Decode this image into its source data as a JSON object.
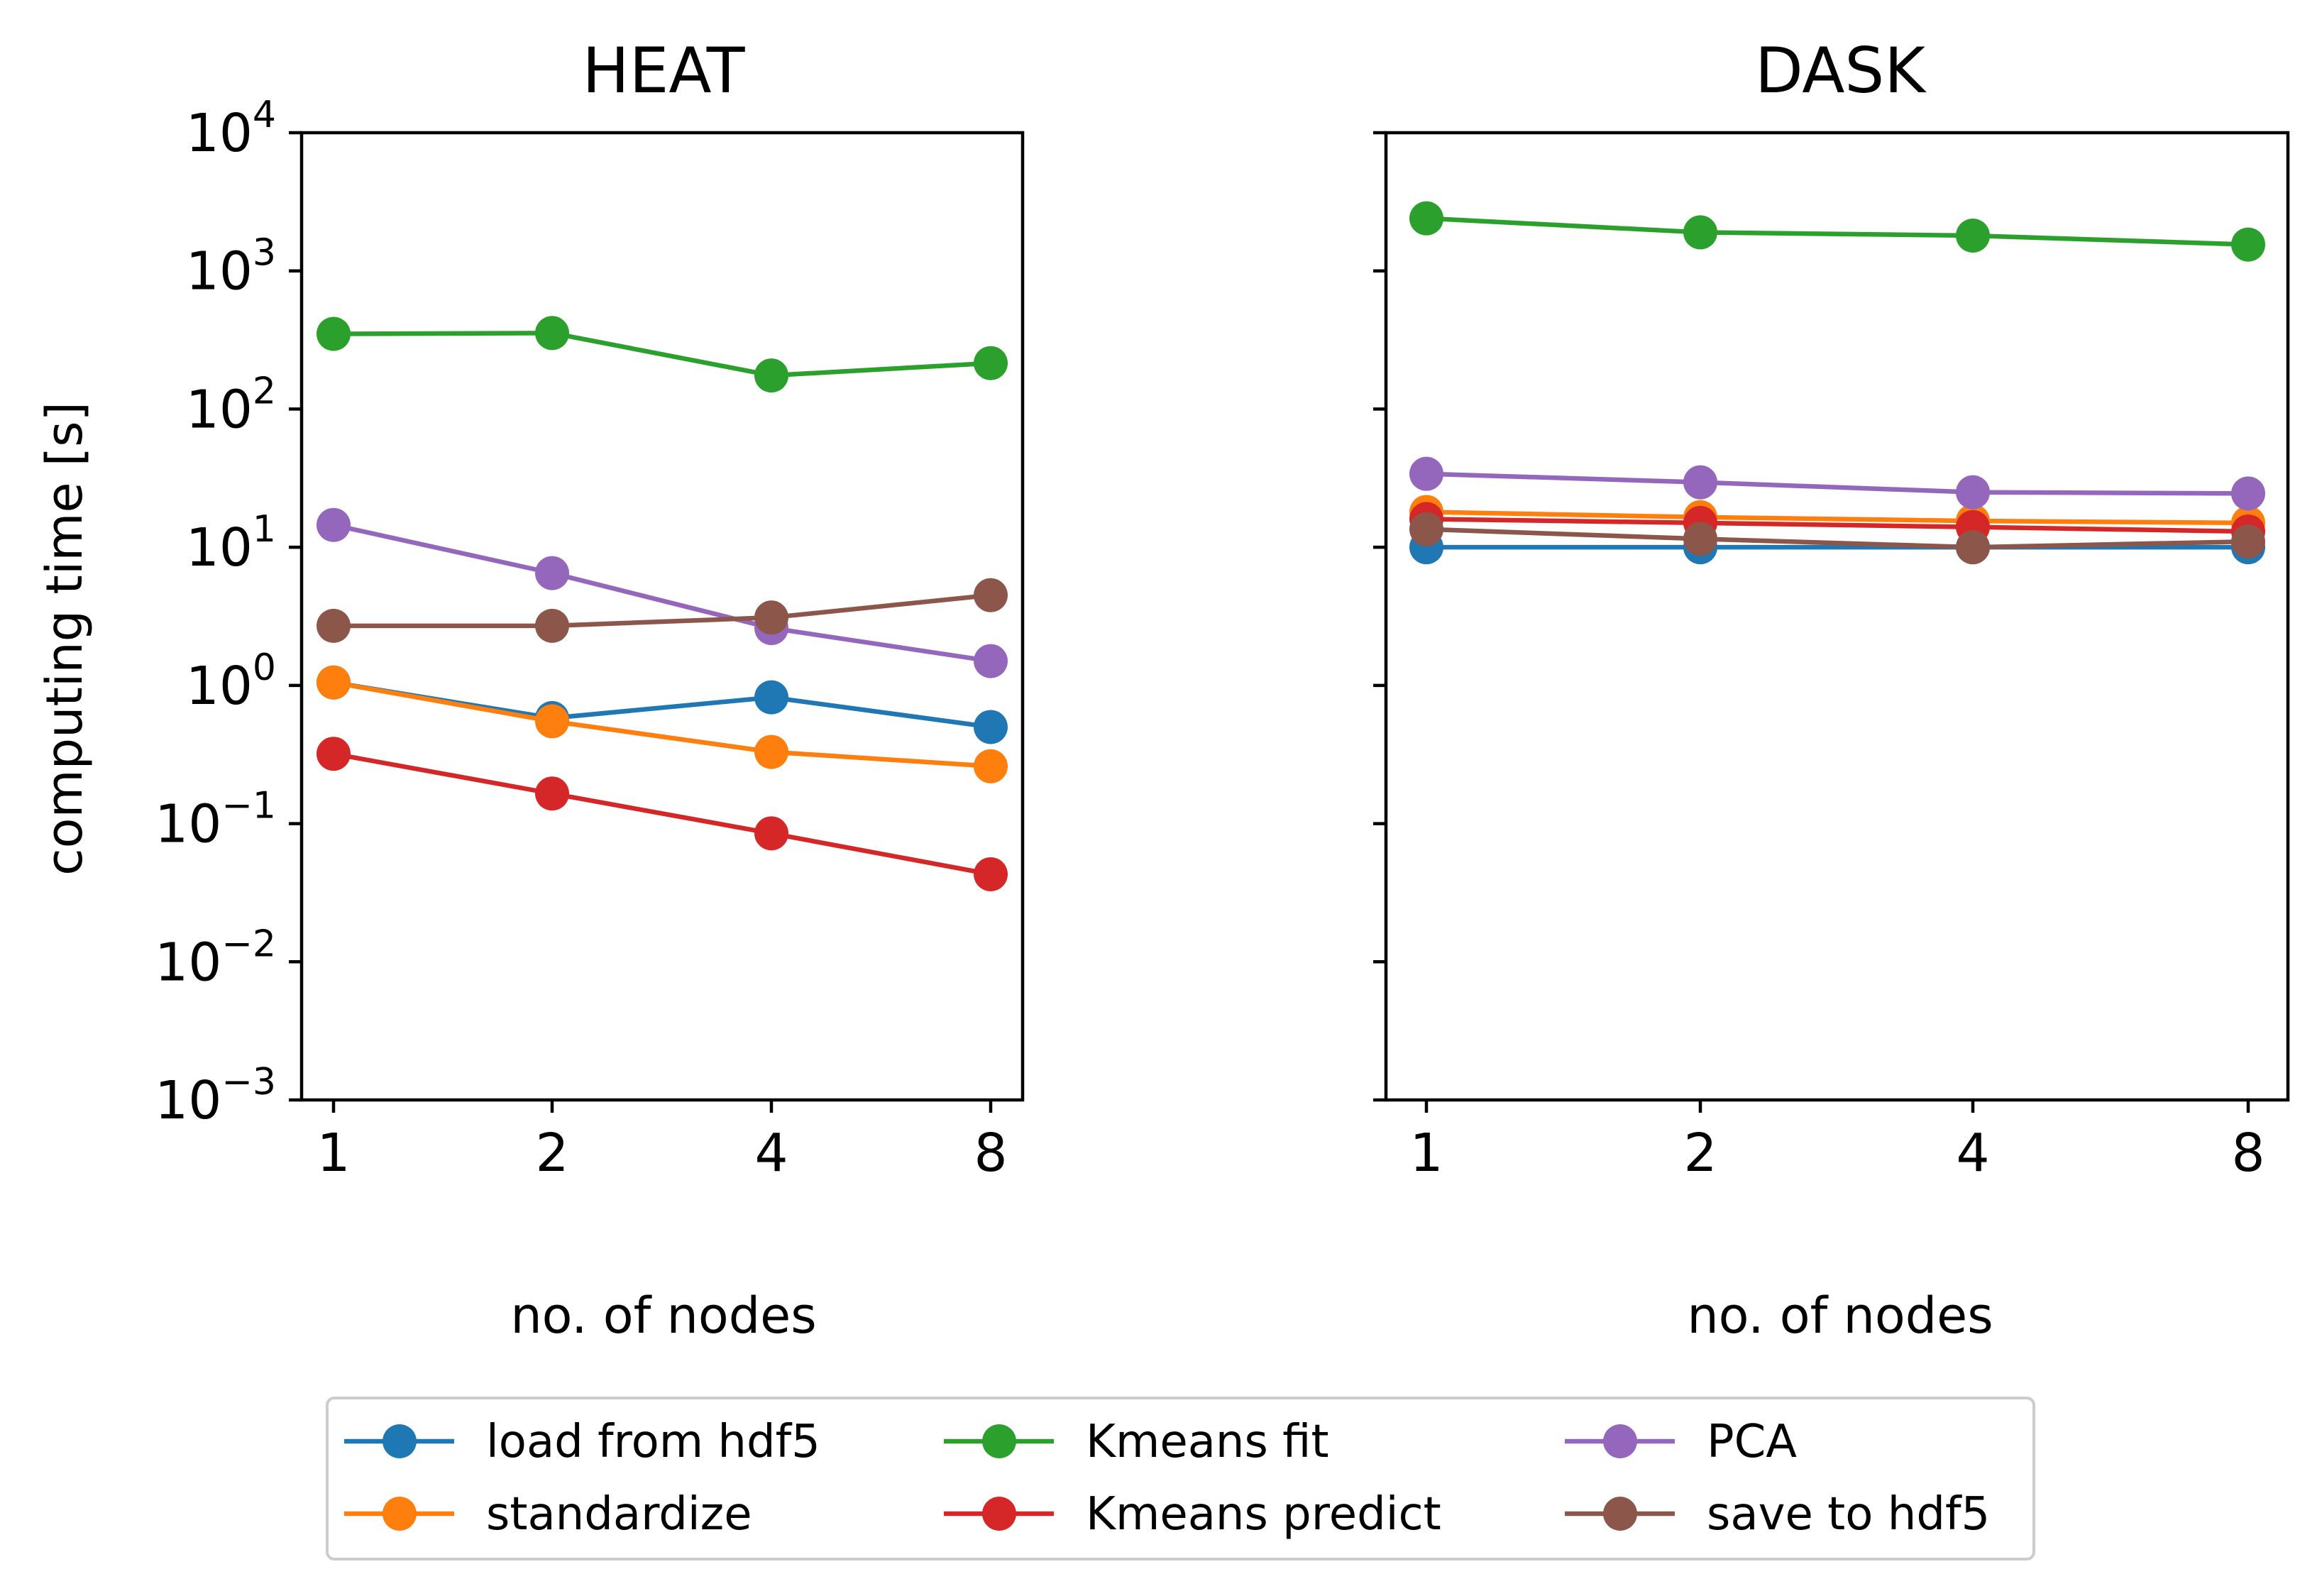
{
  "chart_data": [
    {
      "type": "line",
      "title": "HEAT",
      "xlabel": "no. of nodes",
      "ylabel": "computing time [s]",
      "yscale": "log",
      "ylim": [
        0.001,
        10000
      ],
      "categories": [
        "1",
        "2",
        "4",
        "8"
      ],
      "yticks": [
        {
          "base": "10",
          "exp": "4",
          "value": 10000
        },
        {
          "base": "10",
          "exp": "3",
          "value": 1000
        },
        {
          "base": "10",
          "exp": "2",
          "value": 100
        },
        {
          "base": "10",
          "exp": "1",
          "value": 10
        },
        {
          "base": "10",
          "exp": "0",
          "value": 1
        },
        {
          "base": "10",
          "exp": "−1",
          "value": 0.1
        },
        {
          "base": "10",
          "exp": "−2",
          "value": 0.01
        },
        {
          "base": "10",
          "exp": "−3",
          "value": 0.001
        }
      ],
      "series": [
        {
          "name": "load from hdf5",
          "color": "#1f77b4",
          "values": [
            1.05,
            0.58,
            0.82,
            0.5
          ]
        },
        {
          "name": "standardize",
          "color": "#ff7f0e",
          "values": [
            1.05,
            0.55,
            0.33,
            0.26
          ]
        },
        {
          "name": "Kmeans fit",
          "color": "#2ca02c",
          "values": [
            350,
            355,
            175,
            215
          ]
        },
        {
          "name": "Kmeans predict",
          "color": "#d62728",
          "values": [
            0.32,
            0.165,
            0.085,
            0.043
          ]
        },
        {
          "name": "PCA",
          "color": "#9467bd",
          "values": [
            14.5,
            6.5,
            2.6,
            1.5
          ]
        },
        {
          "name": "save to hdf5",
          "color": "#8c564b",
          "values": [
            2.7,
            2.7,
            3.1,
            4.5
          ]
        }
      ]
    },
    {
      "type": "line",
      "title": "DASK",
      "xlabel": "no. of nodes",
      "ylabel": "",
      "yscale": "log",
      "ylim": [
        0.001,
        10000
      ],
      "categories": [
        "1",
        "2",
        "4",
        "8"
      ],
      "series": [
        {
          "name": "load from hdf5",
          "color": "#1f77b4",
          "values": [
            10,
            10,
            10,
            10
          ]
        },
        {
          "name": "standardize",
          "color": "#ff7f0e",
          "values": [
            18,
            16.5,
            15.5,
            15
          ]
        },
        {
          "name": "Kmeans fit",
          "color": "#2ca02c",
          "values": [
            2400,
            1900,
            1800,
            1550
          ]
        },
        {
          "name": "Kmeans predict",
          "color": "#d62728",
          "values": [
            16,
            15,
            14,
            13
          ]
        },
        {
          "name": "PCA",
          "color": "#9467bd",
          "values": [
            34,
            29.5,
            25,
            24.5
          ]
        },
        {
          "name": "save to hdf5",
          "color": "#8c564b",
          "values": [
            13.5,
            11.5,
            10,
            11
          ]
        }
      ]
    }
  ],
  "legend": {
    "position": "bottom-center",
    "ncol": 3,
    "entries": [
      "load from hdf5",
      "standardize",
      "Kmeans fit",
      "Kmeans predict",
      "PCA",
      "save to hdf5"
    ]
  }
}
